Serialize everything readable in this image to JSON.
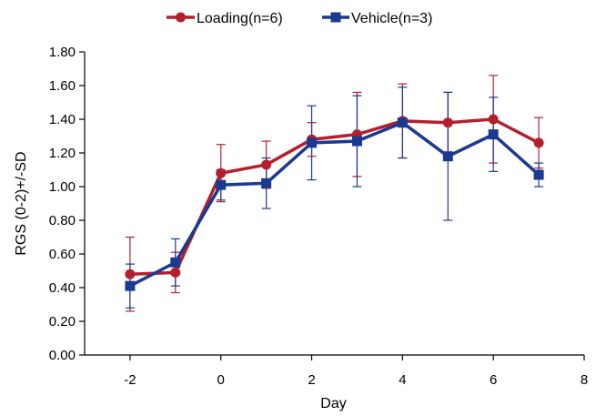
{
  "chart_data": {
    "type": "line",
    "xlabel": "Day",
    "ylabel": "RGS (0-2)+/-SD",
    "xlim": [
      -3,
      8
    ],
    "ylim": [
      0,
      1.8
    ],
    "x_ticks": [
      -2,
      0,
      2,
      4,
      6,
      8
    ],
    "x_tick_labels": [
      "-2",
      "0",
      "2",
      "4",
      "6",
      "8"
    ],
    "y_ticks": [
      0,
      0.2,
      0.4,
      0.6,
      0.8,
      1.0,
      1.2,
      1.4,
      1.6,
      1.8
    ],
    "y_tick_labels": [
      "0.00",
      "0.20",
      "0.40",
      "0.60",
      "0.80",
      "1.00",
      "1.20",
      "1.40",
      "1.60",
      "1.80"
    ],
    "legend_position": "top",
    "grid": false,
    "series": [
      {
        "name": "Loading(n=6)",
        "color": "#b41f2e",
        "marker": "circle",
        "x": [
          -2,
          -1,
          0,
          1,
          2,
          3,
          4,
          5,
          6,
          7
        ],
        "y": [
          0.48,
          0.49,
          1.08,
          1.13,
          1.28,
          1.31,
          1.39,
          1.38,
          1.4,
          1.26
        ],
        "err": [
          0.22,
          0.12,
          0.17,
          0.14,
          0.1,
          0.25,
          0.22,
          0.18,
          0.26,
          0.15
        ]
      },
      {
        "name": "Vehicle(n=3)",
        "color": "#1a3a8f",
        "marker": "square",
        "x": [
          -2,
          -1,
          0,
          1,
          2,
          3,
          4,
          5,
          6,
          7
        ],
        "y": [
          0.41,
          0.55,
          1.01,
          1.02,
          1.26,
          1.27,
          1.38,
          1.18,
          1.31,
          1.07
        ],
        "err": [
          0.13,
          0.14,
          0.09,
          0.15,
          0.22,
          0.27,
          0.21,
          0.38,
          0.22,
          0.07
        ]
      }
    ]
  }
}
